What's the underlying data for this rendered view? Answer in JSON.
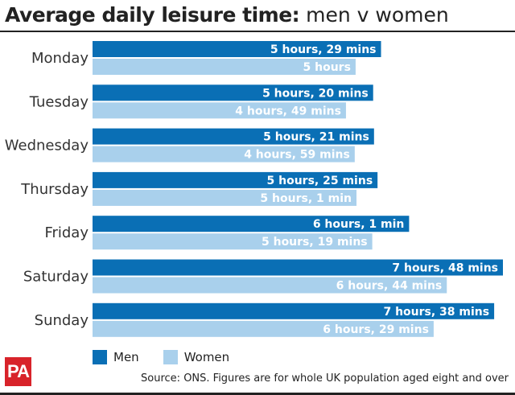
{
  "header": {
    "title_bold": "Average daily leisure time:",
    "title_light": "men v women"
  },
  "colors": {
    "men": "#0a6fb5",
    "women": "#a9d0ec"
  },
  "legend": {
    "men": "Men",
    "women": "Women"
  },
  "footer": {
    "logo": "PA",
    "source": "Source: ONS. Figures are for whole UK population aged eight and over"
  },
  "chart_data": {
    "type": "bar",
    "orientation": "horizontal",
    "unit": "minutes",
    "categories": [
      "Monday",
      "Tuesday",
      "Wednesday",
      "Thursday",
      "Friday",
      "Saturday",
      "Sunday"
    ],
    "series": [
      {
        "name": "Men",
        "values": [
          329,
          320,
          321,
          325,
          361,
          468,
          458
        ],
        "labels": [
          "5 hours, 29 mins",
          "5 hours, 20 mins",
          "5 hours, 21 mins",
          "5 hours, 25 mins",
          "6 hours, 1 min",
          "7 hours, 48 mins",
          "7 hours, 38 mins"
        ]
      },
      {
        "name": "Women",
        "values": [
          300,
          289,
          299,
          301,
          319,
          404,
          389
        ],
        "labels": [
          "5 hours",
          "4 hours, 49 mins",
          "4 hours, 59 mins",
          "5 hours, 1 min",
          "5 hours, 19 mins",
          "6 hours, 44 mins",
          "6 hours, 29 mins"
        ]
      }
    ],
    "legend_position": "bottom-left",
    "grid": false
  }
}
